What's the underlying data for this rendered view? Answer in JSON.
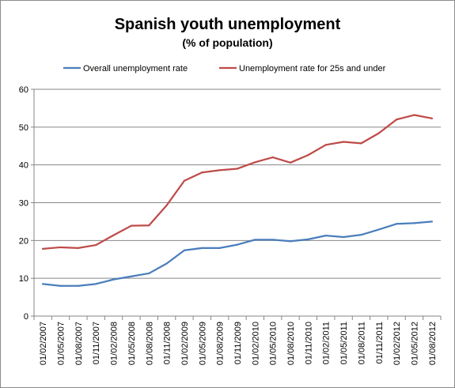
{
  "chart_data": {
    "type": "line",
    "title": "Spanish youth unemployment",
    "subtitle": "(% of population)",
    "xlabel": "",
    "ylabel": "",
    "ylim": [
      0,
      60
    ],
    "yticks": [
      "0",
      "10",
      "20",
      "30",
      "40",
      "50",
      "60"
    ],
    "grid": true,
    "legend_position": "top",
    "categories": [
      "01/02/2007",
      "01/05/2007",
      "01/08/2007",
      "01/11/2007",
      "01/02/2008",
      "01/05/2008",
      "01/08/2008",
      "01/11/2008",
      "01/02/2009",
      "01/05/2009",
      "01/08/2009",
      "01/11/2009",
      "01/02/2010",
      "01/05/2010",
      "01/08/2010",
      "01/11/2010",
      "01/02/2011",
      "01/05/2011",
      "01/08/2011",
      "01/11/2011",
      "01/02/2012",
      "01/05/2012",
      "01/08/2012"
    ],
    "series": [
      {
        "name": "Overall unemployment rate",
        "color": "#4a7ebb",
        "values": [
          8.5,
          8.0,
          8.0,
          8.5,
          9.7,
          10.5,
          11.3,
          13.9,
          17.4,
          18.0,
          18.0,
          18.9,
          20.2,
          20.2,
          19.8,
          20.3,
          21.3,
          20.9,
          21.5,
          22.9,
          24.4,
          24.6,
          25.0
        ]
      },
      {
        "name": "Unemployment rate for 25s and under",
        "color": "#be4b48",
        "values": [
          17.8,
          18.2,
          18.0,
          18.8,
          21.4,
          23.9,
          24.0,
          29.3,
          35.8,
          38.0,
          38.6,
          39.0,
          40.7,
          42.0,
          40.6,
          42.6,
          45.3,
          46.1,
          45.7,
          48.4,
          52.0,
          53.2,
          52.3
        ]
      }
    ]
  }
}
